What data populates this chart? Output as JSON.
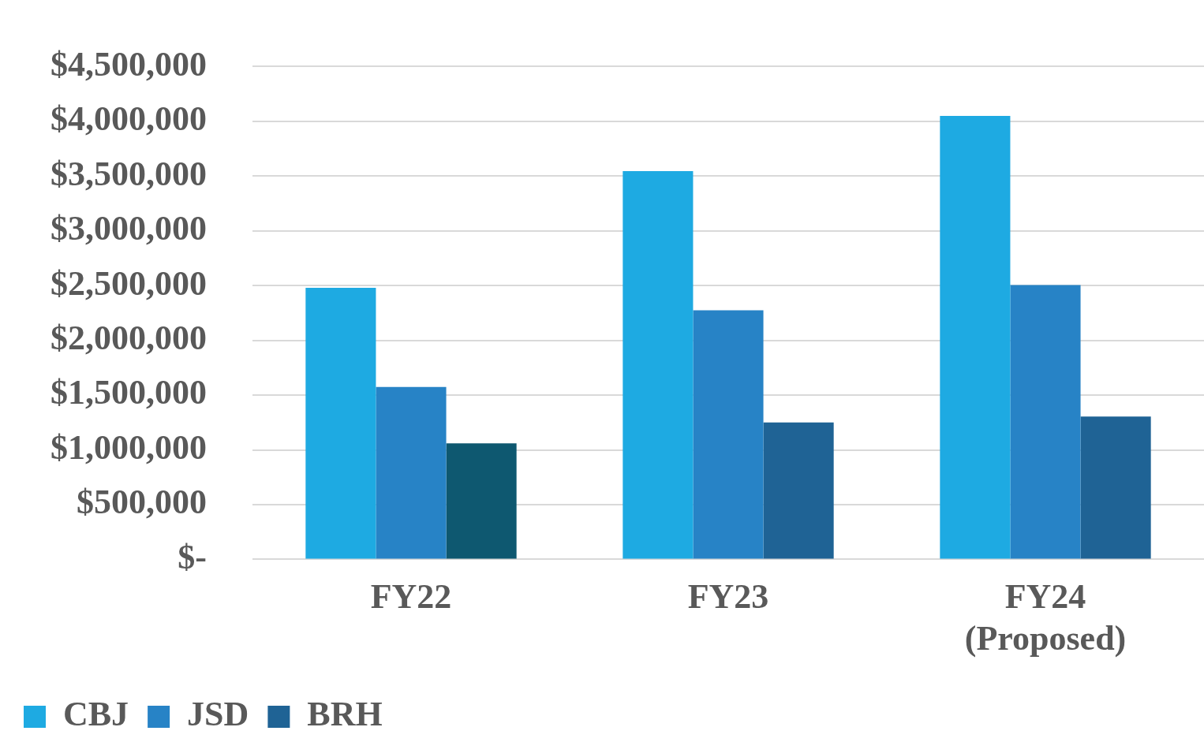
{
  "chart_data": {
    "type": "bar",
    "categories": [
      "FY22",
      "FY23",
      "FY24 (Proposed)"
    ],
    "series": [
      {
        "name": "CBJ",
        "color": "#1eaae2",
        "values": [
          2480000,
          3545000,
          4050000
        ]
      },
      {
        "name": "JSD",
        "color": "#2783c6",
        "values": [
          1575000,
          2275000,
          2505000
        ]
      },
      {
        "name": "BRH",
        "color": "#1f6395",
        "colors": [
          "#0e5870",
          "#1f6395",
          "#1f6395"
        ],
        "values": [
          1060000,
          1250000,
          1305000
        ]
      }
    ],
    "ylim": [
      0,
      4500000
    ],
    "yticks": [
      {
        "value": 0,
        "label": "$-"
      },
      {
        "value": 500000,
        "label": "$500,000"
      },
      {
        "value": 1000000,
        "label": "$1,000,000"
      },
      {
        "value": 1500000,
        "label": "$1,500,000"
      },
      {
        "value": 2000000,
        "label": "$2,000,000"
      },
      {
        "value": 2500000,
        "label": "$2,500,000"
      },
      {
        "value": 3000000,
        "label": "$3,000,000"
      },
      {
        "value": 3500000,
        "label": "$3,500,000"
      },
      {
        "value": 4000000,
        "label": "$4,000,000"
      },
      {
        "value": 4500000,
        "label": "$4,500,000"
      }
    ],
    "grid": "y",
    "legend": "bottom"
  }
}
